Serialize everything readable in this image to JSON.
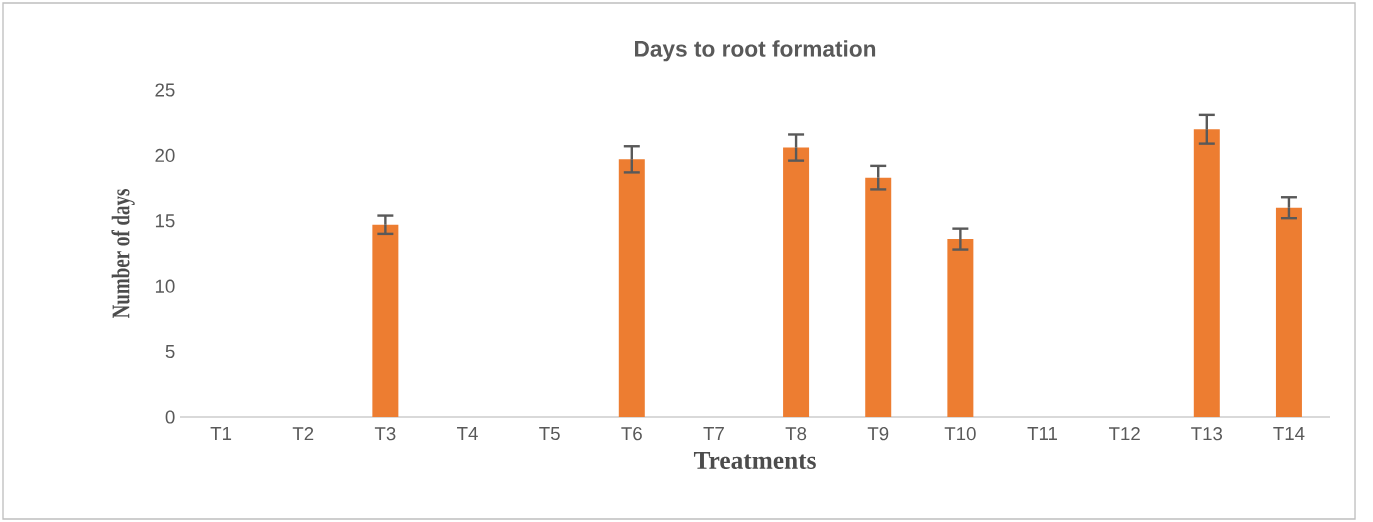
{
  "chart_data": {
    "type": "bar",
    "title": "Days to root formation",
    "xlabel": "Treatments",
    "ylabel": "Number of days",
    "categories": [
      "T1",
      "T2",
      "T3",
      "T4",
      "T5",
      "T6",
      "T7",
      "T8",
      "T9",
      "T10",
      "T11",
      "T12",
      "T13",
      "T14"
    ],
    "values": [
      0,
      0,
      14.7,
      0,
      0,
      19.7,
      0,
      20.6,
      18.3,
      13.6,
      0,
      0,
      22.0,
      16.0
    ],
    "errors": [
      null,
      null,
      0.7,
      null,
      null,
      1.0,
      null,
      1.0,
      0.9,
      0.8,
      null,
      null,
      1.1,
      0.8
    ],
    "color": "#ed7d31",
    "ylim": [
      0,
      25
    ],
    "yticks": [
      0,
      5,
      10,
      15,
      20,
      25
    ]
  }
}
